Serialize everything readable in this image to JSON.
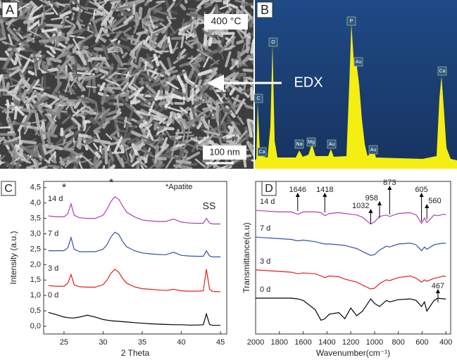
{
  "panels": {
    "A": {
      "label": "A",
      "temperature": "400 °C",
      "scale_bar": "100 nm",
      "arrow_label": "EDX"
    },
    "B": {
      "label": "B",
      "peak_labels": [
        "C",
        "Ca",
        "O",
        "Na",
        "Mg",
        "Au",
        "P",
        "Au",
        "Au",
        "Ca"
      ]
    }
  },
  "chart_data": [
    {
      "type": "line",
      "panel_label": "C",
      "xlabel": "2 Theta",
      "ylabel": "Intensity (a.u.)",
      "annotations": [
        "*",
        "*",
        "SS"
      ],
      "note": "*Apatite",
      "x": [
        23,
        24,
        25,
        25.5,
        25.9,
        26.3,
        27,
        28,
        29,
        30,
        30.5,
        31,
        31.5,
        32,
        32.5,
        33,
        34,
        35,
        36,
        37,
        38,
        39,
        40,
        41,
        42,
        42.8,
        43.2,
        43.6,
        44,
        45
      ],
      "xlim": [
        22.4,
        45.8
      ],
      "xticks": [
        25,
        30,
        35,
        40,
        45
      ],
      "ylim": [
        -0.25,
        4.7
      ],
      "yticks": [
        {
          "value": 0,
          "label": "0,0"
        },
        {
          "value": 0.5,
          "label": "0,5"
        },
        {
          "value": 1,
          "label": "1,0"
        },
        {
          "value": 1.5,
          "label": "1,5"
        },
        {
          "value": 2,
          "label": "2,0"
        },
        {
          "value": 2.5,
          "label": "2,5"
        },
        {
          "value": 3,
          "label": "3,0"
        },
        {
          "value": 3.5,
          "label": "3,5"
        },
        {
          "value": 4,
          "label": "4,0"
        },
        {
          "value": 4.5,
          "label": "4,5"
        }
      ],
      "series": [
        {
          "name": "14 d",
          "color": "#b03fb0",
          "values": [
            3.58,
            3.55,
            3.55,
            3.65,
            3.97,
            3.6,
            3.52,
            3.5,
            3.5,
            3.6,
            3.8,
            4.05,
            4.2,
            4.12,
            3.9,
            3.7,
            3.55,
            3.45,
            3.42,
            3.4,
            3.4,
            3.48,
            3.38,
            3.35,
            3.34,
            3.34,
            3.5,
            3.35,
            3.32,
            3.32
          ]
        },
        {
          "name": "7 d",
          "color": "#3552a3",
          "values": [
            2.45,
            2.45,
            2.45,
            2.55,
            2.88,
            2.5,
            2.42,
            2.42,
            2.42,
            2.5,
            2.65,
            2.9,
            3.05,
            2.98,
            2.75,
            2.58,
            2.45,
            2.38,
            2.35,
            2.33,
            2.32,
            2.4,
            2.3,
            2.28,
            2.27,
            2.27,
            2.45,
            2.28,
            2.25,
            2.25
          ]
        },
        {
          "name": "3 d",
          "color": "#e02020",
          "values": [
            1.32,
            1.3,
            1.3,
            1.4,
            1.68,
            1.35,
            1.28,
            1.27,
            1.27,
            1.35,
            1.5,
            1.72,
            1.85,
            1.75,
            1.55,
            1.4,
            1.28,
            1.22,
            1.2,
            1.18,
            1.16,
            1.2,
            1.15,
            1.14,
            1.14,
            1.15,
            1.85,
            1.2,
            1.13,
            1.12
          ]
        },
        {
          "name": "0 d",
          "color": "#000000",
          "values": [
            0.45,
            0.38,
            0.3,
            0.28,
            0.27,
            0.27,
            0.3,
            0.36,
            0.3,
            0.22,
            0.2,
            0.18,
            0.17,
            0.16,
            0.15,
            0.14,
            0.12,
            0.1,
            0.08,
            0.07,
            0.06,
            0.05,
            0.05,
            0.04,
            0.04,
            0.05,
            0.4,
            0.06,
            0.03,
            0.03
          ]
        }
      ]
    },
    {
      "type": "line",
      "panel_label": "D",
      "xlabel": "Wavenumber(cm⁻¹)",
      "ylabel": "Transmittance(a.u)",
      "x": [
        2000,
        1900,
        1800,
        1700,
        1646,
        1600,
        1500,
        1450,
        1418,
        1380,
        1300,
        1250,
        1200,
        1150,
        1100,
        1032,
        1000,
        958,
        900,
        873,
        800,
        700,
        650,
        605,
        580,
        560,
        500,
        467,
        420,
        400
      ],
      "xlim": [
        2000,
        360
      ],
      "xticks": [
        2000,
        1800,
        1600,
        1400,
        1200,
        1000,
        800,
        600,
        400
      ],
      "ylim": [
        0,
        10
      ],
      "peak_annotations": [
        1646,
        1418,
        1032,
        958,
        873,
        605,
        560,
        467
      ],
      "series": [
        {
          "name": "14 d",
          "color": "#b03fb0",
          "values": [
            8.1,
            8.05,
            8.0,
            8.0,
            7.85,
            8.0,
            8.0,
            7.95,
            7.75,
            7.9,
            7.95,
            7.9,
            7.85,
            7.8,
            7.65,
            7.2,
            7.35,
            7.7,
            7.8,
            7.7,
            7.9,
            7.95,
            7.8,
            7.25,
            7.6,
            7.3,
            7.8,
            7.75,
            7.85,
            7.8
          ]
        },
        {
          "name": "7 d",
          "color": "#3552a3",
          "values": [
            6.35,
            6.3,
            6.25,
            6.2,
            6.1,
            6.15,
            6.05,
            5.95,
            5.9,
            5.9,
            5.85,
            5.8,
            5.7,
            5.6,
            5.4,
            5.15,
            5.2,
            5.5,
            5.75,
            5.7,
            5.9,
            5.95,
            5.85,
            5.45,
            5.7,
            5.55,
            5.85,
            5.9,
            5.95,
            5.95
          ]
        },
        {
          "name": "3 d",
          "color": "#e02020",
          "values": [
            4.2,
            4.15,
            4.1,
            4.05,
            3.95,
            4.0,
            3.95,
            3.8,
            3.7,
            3.8,
            3.75,
            3.6,
            3.5,
            3.4,
            3.2,
            2.95,
            3.0,
            3.3,
            3.55,
            3.5,
            3.7,
            3.8,
            3.65,
            3.4,
            3.55,
            3.45,
            3.65,
            3.7,
            3.8,
            3.75
          ]
        },
        {
          "name": "0 d",
          "color": "#000000",
          "values": [
            2.35,
            2.35,
            2.35,
            2.35,
            2.3,
            2.2,
            1.6,
            0.9,
            1.0,
            1.3,
            1.4,
            1.0,
            1.7,
            1.2,
            1.5,
            2.3,
            2.0,
            1.8,
            2.2,
            2.1,
            2.25,
            2.3,
            2.2,
            1.8,
            2.1,
            1.5,
            2.2,
            2.35,
            2.3,
            2.3
          ]
        }
      ]
    }
  ]
}
